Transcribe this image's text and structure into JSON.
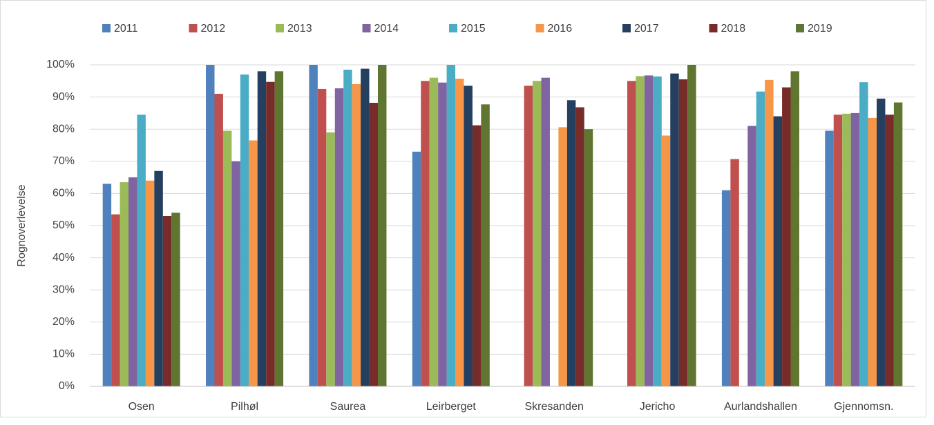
{
  "chart_data": {
    "type": "bar",
    "y_label": "Rognoverlevelse",
    "categories": [
      "Osen",
      "Pilhøl",
      "Saurea",
      "Leirberget",
      "Skresanden",
      "Jericho",
      "Aurlandshallen",
      "Gjennomsn."
    ],
    "series": [
      {
        "name": "2011",
        "color": "#4f81bd",
        "values": [
          63,
          100,
          100,
          73,
          null,
          null,
          61,
          79.5
        ]
      },
      {
        "name": "2012",
        "color": "#c0504d",
        "values": [
          53.5,
          91,
          92.5,
          95,
          93.5,
          95,
          70.7,
          84.5
        ]
      },
      {
        "name": "2013",
        "color": "#9bbb59",
        "values": [
          63.5,
          79.5,
          79,
          96,
          95,
          96.5,
          null,
          84.8
        ]
      },
      {
        "name": "2014",
        "color": "#8064a2",
        "values": [
          65,
          70,
          92.7,
          94.5,
          96,
          96.7,
          81,
          85
        ]
      },
      {
        "name": "2015",
        "color": "#4bacc6",
        "values": [
          84.5,
          97,
          98.5,
          100,
          null,
          96.4,
          91.7,
          94.6
        ]
      },
      {
        "name": "2016",
        "color": "#f79646",
        "values": [
          64,
          76.5,
          94,
          95.7,
          80.6,
          78,
          95.3,
          83.5
        ]
      },
      {
        "name": "2017",
        "color": "#243f60",
        "values": [
          67,
          98,
          98.8,
          93.5,
          89,
          97.3,
          84,
          89.5
        ]
      },
      {
        "name": "2018",
        "color": "#772c2a",
        "values": [
          53,
          94.7,
          88.2,
          81.2,
          86.8,
          95.5,
          93,
          84.5
        ]
      },
      {
        "name": "2019",
        "color": "#5f7530",
        "values": [
          54,
          98,
          100,
          87.7,
          80,
          100,
          98,
          88.3
        ]
      }
    ],
    "ylim": [
      0,
      100
    ],
    "yticks": [
      {
        "value": 0,
        "label": "0%"
      },
      {
        "value": 10,
        "label": "10%"
      },
      {
        "value": 20,
        "label": "20%"
      },
      {
        "value": 30,
        "label": "30%"
      },
      {
        "value": 40,
        "label": "40%"
      },
      {
        "value": 50,
        "label": "50%"
      },
      {
        "value": 60,
        "label": "60%"
      },
      {
        "value": 70,
        "label": "70%"
      },
      {
        "value": 80,
        "label": "80%"
      },
      {
        "value": 90,
        "label": "90%"
      },
      {
        "value": 100,
        "label": "100%"
      }
    ],
    "grid": true,
    "legend": "top"
  }
}
